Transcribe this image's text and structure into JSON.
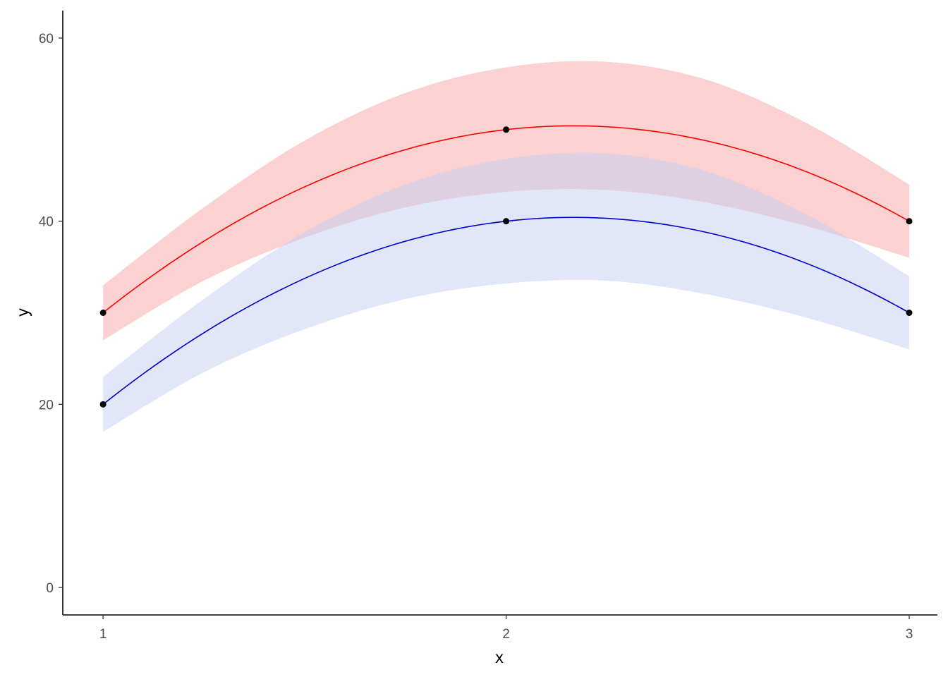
{
  "chart_data": {
    "type": "line",
    "title": "",
    "xlabel": "x",
    "ylabel": "y",
    "xlim": [
      0.9,
      3.07
    ],
    "ylim": [
      -3,
      63
    ],
    "x_ticks": [
      1,
      2,
      3
    ],
    "x_tick_labels": [
      "1",
      "2",
      "3"
    ],
    "y_ticks": [
      0,
      20,
      40,
      60
    ],
    "y_tick_labels": [
      "0",
      "20",
      "40",
      "60"
    ],
    "grid": false,
    "legend": "none",
    "series": [
      {
        "color": "#ff0000",
        "band_color": "#f8a3a3",
        "points": [
          [
            1,
            30
          ],
          [
            2,
            50
          ],
          [
            3,
            40
          ]
        ],
        "band": {
          "x": [
            1,
            1.25,
            1.5,
            1.75,
            2,
            2.25,
            2.5,
            2.75,
            3
          ],
          "lower": [
            27,
            33.5,
            38.2,
            41.5,
            43.2,
            43.4,
            42,
            39.4,
            36
          ],
          "upper": [
            33,
            41.5,
            48.8,
            54,
            56.8,
            57.4,
            55.4,
            50.6,
            44
          ]
        }
      },
      {
        "color": "#0000cc",
        "band_color": "#c3d0f2",
        "points": [
          [
            1,
            20
          ],
          [
            2,
            40
          ],
          [
            3,
            30
          ]
        ],
        "band": {
          "x": [
            1,
            1.25,
            1.5,
            1.75,
            2,
            2.25,
            2.5,
            2.75,
            3
          ],
          "lower": [
            17,
            23.5,
            28.2,
            31.5,
            33.2,
            33.5,
            32,
            29.4,
            26
          ],
          "upper": [
            23,
            31.5,
            38.8,
            44,
            46.8,
            47.4,
            45.4,
            40.6,
            34
          ]
        }
      }
    ]
  }
}
